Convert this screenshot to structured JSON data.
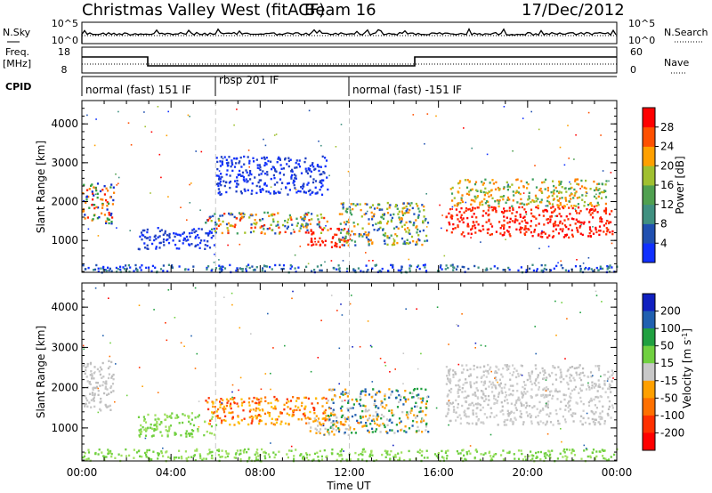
{
  "header": {
    "station": "Christmas Valley West (fitACF)",
    "beam": "Beam 16",
    "date": "17/Dec/2012"
  },
  "top_panels": {
    "nsky_label": "N.Sky",
    "nsky_ticks": [
      "10^5",
      "10^0"
    ],
    "nsearch_label": "N.Search",
    "nsearch_ticks": [
      "10^5",
      "10^0"
    ],
    "freq_label": "Freq.",
    "freq_unit": "[MHz]",
    "freq_ticks": [
      "18",
      "8"
    ],
    "nave_label": "Nave",
    "nave_ticks": [
      "60",
      "0"
    ],
    "cpid_label": "CPID",
    "cpid_segments": [
      {
        "name": "normal (fast) 151 IF",
        "start": 0,
        "end": 6
      },
      {
        "name": "rbsp 201 IF",
        "start": 6,
        "end": 12
      },
      {
        "name": "normal (fast) -151 IF",
        "start": 12,
        "end": 24
      }
    ]
  },
  "chart_data": [
    {
      "type": "heatmap",
      "title": "Power",
      "ylabel": "Slant Range [km]",
      "ylim": [
        180,
        4600
      ],
      "yticks": [
        1000,
        2000,
        3000,
        4000
      ],
      "xlim": [
        0,
        24
      ],
      "colorbar_label": "Power [dB]",
      "colorbar_ticks": [
        "4",
        "8",
        "12",
        "16",
        "20",
        "24",
        "28"
      ],
      "colorbar_colors": [
        "#1030ff",
        "#2050b0",
        "#409080",
        "#50a050",
        "#a0c030",
        "#ffa000",
        "#ff5000",
        "#ff0000"
      ],
      "bands": [
        {
          "t0": 0.0,
          "t1": 1.4,
          "r0": 1450,
          "r1": 2500,
          "colors": [
            "#ff2000",
            "#ff8000",
            "#30a040",
            "#1030d0"
          ]
        },
        {
          "t0": 2.5,
          "t1": 6.0,
          "r0": 800,
          "r1": 1350,
          "colors": [
            "#2040c0",
            "#1030ff"
          ]
        },
        {
          "t0": 5.5,
          "t1": 11.0,
          "r0": 1200,
          "r1": 1750,
          "colors": [
            "#2050c0",
            "#40a060",
            "#a0c020",
            "#ff9000",
            "#ff3000"
          ]
        },
        {
          "t0": 10.0,
          "t1": 12.0,
          "r0": 850,
          "r1": 1350,
          "colors": [
            "#ff1000",
            "#ff3000"
          ]
        },
        {
          "t0": 11.5,
          "t1": 15.5,
          "r0": 900,
          "r1": 2000,
          "colors": [
            "#2050c0",
            "#40a060",
            "#a0c020",
            "#ff9000"
          ]
        },
        {
          "t0": 16.3,
          "t1": 23.8,
          "r0": 1100,
          "r1": 1900,
          "colors": [
            "#ff0000",
            "#ff3000"
          ]
        },
        {
          "t0": 16.5,
          "t1": 23.5,
          "r0": 1900,
          "r1": 2600,
          "colors": [
            "#ff8000",
            "#ffa000",
            "#a0c030",
            "#40a060"
          ]
        },
        {
          "t0": 6.0,
          "t1": 11.0,
          "r0": 2200,
          "r1": 3200,
          "colors": [
            "#2040c0",
            "#1030ff"
          ]
        },
        {
          "t0": 0.0,
          "t1": 24.0,
          "r0": 200,
          "r1": 400,
          "colors": [
            "#1030ff",
            "#2050b0",
            "#409080"
          ]
        }
      ]
    },
    {
      "type": "heatmap",
      "title": "Velocity",
      "ylabel": "Slant Range [km]",
      "xlabel": "Time UT",
      "ylim": [
        180,
        4600
      ],
      "yticks": [
        1000,
        2000,
        3000,
        4000
      ],
      "xlim": [
        0,
        24
      ],
      "xticks": [
        "00:00",
        "04:00",
        "08:00",
        "12:00",
        "16:00",
        "20:00",
        "00:00"
      ],
      "colorbar_label": "Velocity [m s^-1]",
      "colorbar_ticks": [
        "200",
        "100",
        "50",
        "15",
        "-15",
        "-50",
        "-100",
        "-200"
      ],
      "colorbar_colors": [
        "#1020c0",
        "#2060b0",
        "#20a040",
        "#70d040",
        "#c8c8c8",
        "#ffa000",
        "#ff7000",
        "#ff3000",
        "#ff0000"
      ],
      "bands": [
        {
          "t0": 0.0,
          "t1": 1.4,
          "r0": 1450,
          "r1": 2700,
          "colors": [
            "#c8c8c8",
            "#bebebe"
          ]
        },
        {
          "t0": 2.5,
          "t1": 6.0,
          "r0": 800,
          "r1": 1400,
          "colors": [
            "#70d040",
            "#a0e060"
          ]
        },
        {
          "t0": 5.5,
          "t1": 11.0,
          "r0": 1100,
          "r1": 1800,
          "colors": [
            "#ff7000",
            "#ffa000",
            "#ff3000",
            "#ffc000"
          ]
        },
        {
          "t0": 10.0,
          "t1": 12.0,
          "r0": 850,
          "r1": 1350,
          "colors": [
            "#c8c8c8",
            "#ffa000"
          ]
        },
        {
          "t0": 11.0,
          "t1": 15.5,
          "r0": 900,
          "r1": 2000,
          "colors": [
            "#ffa000",
            "#c8c8c8",
            "#20a040",
            "#2060b0"
          ]
        },
        {
          "t0": 16.3,
          "t1": 23.8,
          "r0": 1100,
          "r1": 2600,
          "colors": [
            "#c8c8c8",
            "#bebebe",
            "#d0d0d0"
          ]
        },
        {
          "t0": 0.0,
          "t1": 24.0,
          "r0": 200,
          "r1": 500,
          "colors": [
            "#70d040",
            "#a0e060"
          ]
        }
      ]
    }
  ]
}
